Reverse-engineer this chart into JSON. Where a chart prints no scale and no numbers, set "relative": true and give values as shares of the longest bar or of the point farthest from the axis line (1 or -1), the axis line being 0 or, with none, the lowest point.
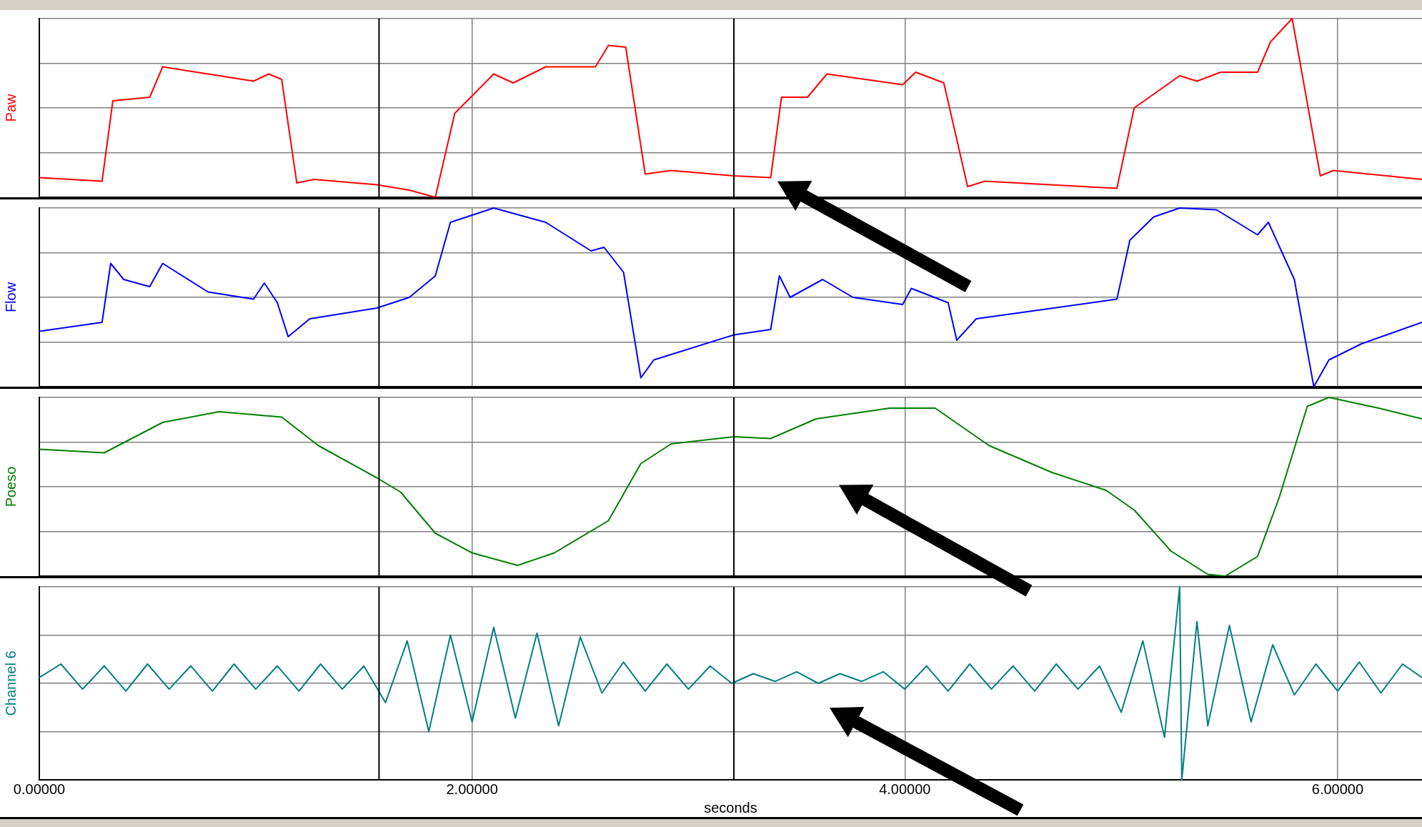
{
  "chart_data": [
    {
      "type": "line",
      "ylabel": "Paw",
      "relative": true,
      "xlim": [
        0,
        6.39
      ],
      "xticks": [
        0,
        2,
        4,
        6
      ],
      "grid": true,
      "tick_labels": false,
      "ref_lines": [
        {
          "axis": "x",
          "value": 1.57,
          "color": "#000000"
        },
        {
          "axis": "x",
          "value": 3.21,
          "color": "#000000"
        }
      ],
      "series": [
        {
          "color": "#ff0000",
          "x": [
            0,
            0.29,
            0.34,
            0.51,
            0.57,
            0.78,
            0.99,
            1.06,
            1.12,
            1.19,
            1.27,
            1.56,
            1.71,
            1.83,
            1.92,
            2.1,
            2.19,
            2.34,
            2.57,
            2.63,
            2.71,
            2.8,
            2.92,
            3.21,
            3.38,
            3.43,
            3.55,
            3.64,
            3.99,
            4.05,
            4.18,
            4.29,
            4.37,
            4.98,
            5.06,
            5.27,
            5.35,
            5.46,
            5.63,
            5.69,
            5.79,
            5.92,
            5.98,
            6.39
          ],
          "values": [
            0.11,
            0.09,
            0.54,
            0.56,
            0.73,
            0.69,
            0.65,
            0.69,
            0.66,
            0.08,
            0.1,
            0.07,
            0.04,
            0,
            0.47,
            0.69,
            0.64,
            0.73,
            0.73,
            0.85,
            0.84,
            0.13,
            0.15,
            0.12,
            0.11,
            0.56,
            0.56,
            0.69,
            0.63,
            0.7,
            0.64,
            0.06,
            0.09,
            0.05,
            0.5,
            0.68,
            0.65,
            0.7,
            0.7,
            0.87,
            1,
            0.12,
            0.15,
            0.1
          ]
        }
      ]
    },
    {
      "type": "line",
      "ylabel": "Flow",
      "relative": true,
      "xlim": [
        0,
        6.39
      ],
      "xticks": [
        0,
        2,
        4,
        6
      ],
      "grid": true,
      "tick_labels": false,
      "ref_lines": [
        {
          "axis": "x",
          "value": 1.57,
          "color": "#000000"
        },
        {
          "axis": "x",
          "value": 3.21,
          "color": "#000000"
        }
      ],
      "series": [
        {
          "color": "#0000ff",
          "x": [
            0,
            0.29,
            0.33,
            0.39,
            0.51,
            0.57,
            0.78,
            0.99,
            1.04,
            1.1,
            1.15,
            1.25,
            1.56,
            1.71,
            1.83,
            1.9,
            2,
            2.1,
            2.34,
            2.55,
            2.61,
            2.7,
            2.78,
            2.84,
            3.21,
            3.38,
            3.42,
            3.47,
            3.62,
            3.76,
            3.99,
            4.03,
            4.2,
            4.24,
            4.33,
            4.98,
            5.04,
            5.15,
            5.27,
            5.44,
            5.63,
            5.68,
            5.8,
            5.89,
            5.96,
            6.11,
            6.39
          ],
          "values": [
            0.31,
            0.36,
            0.69,
            0.6,
            0.56,
            0.69,
            0.53,
            0.49,
            0.58,
            0.47,
            0.28,
            0.38,
            0.44,
            0.5,
            0.62,
            0.92,
            0.96,
            1,
            0.92,
            0.76,
            0.78,
            0.64,
            0.05,
            0.15,
            0.29,
            0.32,
            0.62,
            0.5,
            0.6,
            0.5,
            0.46,
            0.55,
            0.47,
            0.26,
            0.38,
            0.49,
            0.82,
            0.95,
            1,
            0.99,
            0.85,
            0.92,
            0.6,
            0,
            0.15,
            0.24,
            0.36
          ]
        }
      ]
    },
    {
      "type": "line",
      "ylabel": "Poeso",
      "relative": true,
      "xlim": [
        0,
        6.39
      ],
      "xticks": [
        0,
        2,
        4,
        6
      ],
      "grid": true,
      "tick_labels": false,
      "ref_lines": [
        {
          "axis": "x",
          "value": 1.57,
          "color": "#000000"
        },
        {
          "axis": "x",
          "value": 3.21,
          "color": "#000000"
        }
      ],
      "series": [
        {
          "color": "#008000",
          "x": [
            0,
            0.3,
            0.57,
            0.83,
            1.12,
            1.29,
            1.56,
            1.67,
            1.83,
            2,
            2.21,
            2.38,
            2.63,
            2.78,
            2.92,
            3.21,
            3.38,
            3.59,
            3.93,
            4.14,
            4.39,
            4.68,
            4.93,
            5.06,
            5.23,
            5.4,
            5.48,
            5.63,
            5.73,
            5.86,
            5.96,
            6.19,
            6.39
          ],
          "values": [
            0.71,
            0.69,
            0.86,
            0.92,
            0.89,
            0.73,
            0.55,
            0.47,
            0.24,
            0.13,
            0.06,
            0.13,
            0.31,
            0.63,
            0.74,
            0.78,
            0.77,
            0.88,
            0.94,
            0.94,
            0.73,
            0.58,
            0.48,
            0.37,
            0.14,
            0.01,
            0,
            0.11,
            0.44,
            0.95,
            1,
            0.94,
            0.88
          ]
        }
      ]
    },
    {
      "type": "line",
      "ylabel": "Channel 6",
      "xlabel": "seconds",
      "relative": true,
      "xlim": [
        0,
        6.39
      ],
      "xticks": [
        {
          "value": 0,
          "label": "0.00000"
        },
        {
          "value": 2,
          "label": "2.00000"
        },
        {
          "value": 4,
          "label": "4.00000"
        },
        {
          "value": 6,
          "label": "6.00000"
        }
      ],
      "grid": true,
      "tick_labels": "x",
      "ref_lines": [
        {
          "axis": "x",
          "value": 1.57,
          "color": "#000000"
        },
        {
          "axis": "x",
          "value": 3.21,
          "color": "#000000"
        }
      ],
      "series": [
        {
          "color": "#008080",
          "x": [
            0,
            0.1,
            0.2,
            0.3,
            0.4,
            0.5,
            0.6,
            0.7,
            0.8,
            0.9,
            1,
            1.1,
            1.2,
            1.3,
            1.4,
            1.5,
            1.6,
            1.7,
            1.8,
            1.9,
            2,
            2.1,
            2.2,
            2.3,
            2.4,
            2.5,
            2.6,
            2.7,
            2.8,
            2.9,
            3,
            3.1,
            3.2,
            3.3,
            3.4,
            3.5,
            3.6,
            3.7,
            3.8,
            3.9,
            4,
            4.1,
            4.2,
            4.3,
            4.4,
            4.5,
            4.6,
            4.7,
            4.8,
            4.9,
            5,
            5.1,
            5.2,
            5.27,
            5.28,
            5.35,
            5.4,
            5.5,
            5.6,
            5.7,
            5.8,
            5.9,
            6,
            6.1,
            6.2,
            6.3,
            6.39
          ],
          "values": [
            0.53,
            0.6,
            0.47,
            0.59,
            0.46,
            0.6,
            0.47,
            0.59,
            0.46,
            0.6,
            0.47,
            0.59,
            0.46,
            0.6,
            0.47,
            0.59,
            0.4,
            0.72,
            0.25,
            0.75,
            0.3,
            0.79,
            0.32,
            0.76,
            0.28,
            0.74,
            0.45,
            0.61,
            0.46,
            0.6,
            0.47,
            0.59,
            0.5,
            0.55,
            0.51,
            0.56,
            0.5,
            0.55,
            0.51,
            0.56,
            0.47,
            0.59,
            0.46,
            0.6,
            0.47,
            0.59,
            0.46,
            0.6,
            0.47,
            0.59,
            0.35,
            0.72,
            0.22,
            1,
            0,
            0.82,
            0.28,
            0.8,
            0.3,
            0.7,
            0.44,
            0.6,
            0.46,
            0.61,
            0.45,
            0.6,
            0.53
          ]
        }
      ]
    }
  ]
}
